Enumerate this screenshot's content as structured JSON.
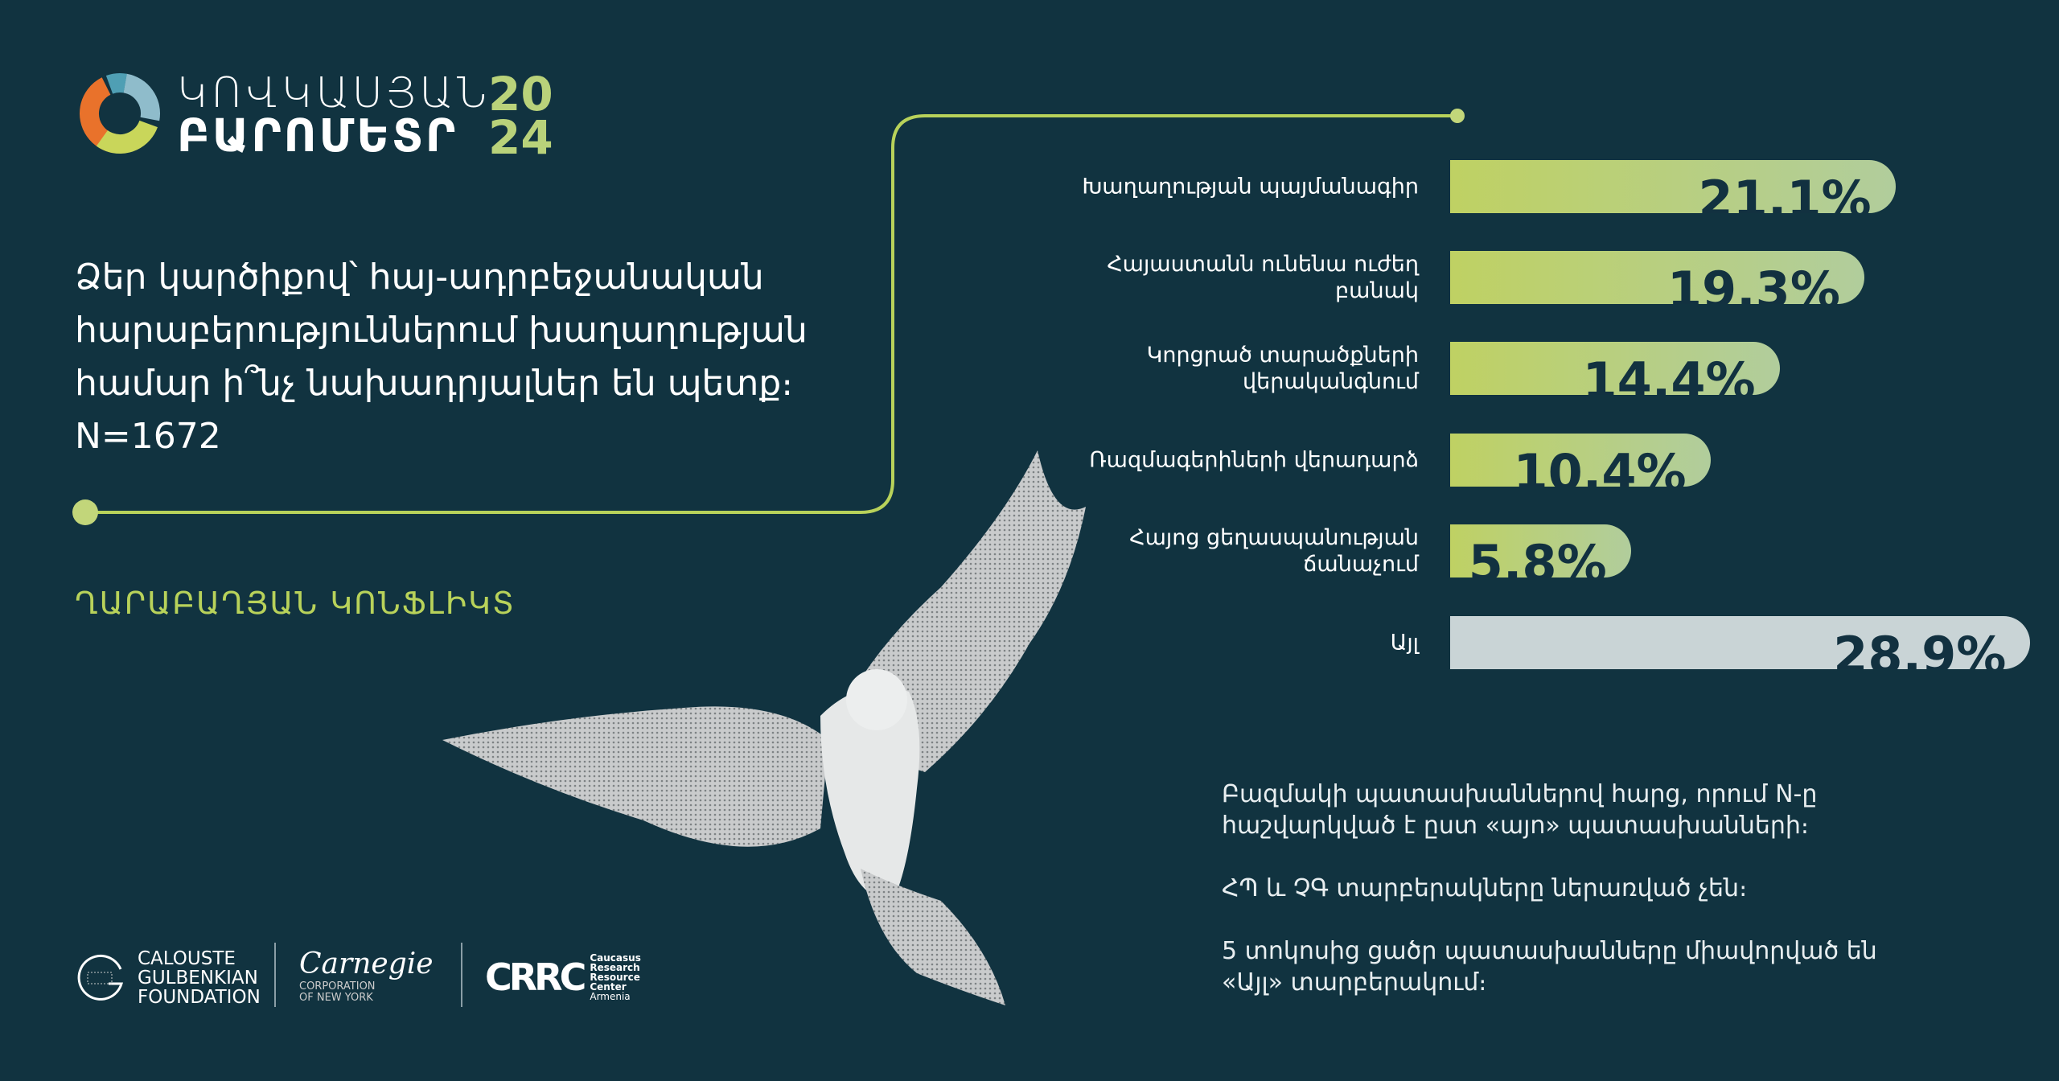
{
  "brand": {
    "line1": "ԿՈՎԿԱՍՅԱՆ",
    "line2": "ԲԱՐՈՄԵՏՐ",
    "year1": "20",
    "year2": "24"
  },
  "question": "Ձեր կարծիքով՝ հայ-ադրբեջանական հարաբերություններում խաղաղության համար ի՞նչ նախադրյալներ են պետք։ N=1672",
  "subtitle": "ՂԱՐԱԲԱՂՅԱՆ ԿՈՆՖԼԻԿՏ",
  "chart_data": {
    "type": "bar",
    "orientation": "horizontal",
    "categories": [
      "Խաղաղության պայմանագիր",
      "Հայաստանն ունենա ուժեղ բանակ",
      "Կորցրած տարածքների վերականգնում",
      "Ռազմագերիների վերադարձ",
      "Հայոց ցեղասպանության ճանաչում",
      "Այլ"
    ],
    "values": [
      21.1,
      19.3,
      14.4,
      10.4,
      5.8,
      28.9
    ],
    "labels": [
      "21.1%",
      "19.3%",
      "14.4%",
      "10.4%",
      "5.8%",
      "28.9%"
    ],
    "colors": {
      "main": "#bfd163",
      "other": "#c9d4d6"
    }
  },
  "notes": [
    "Բազմակի պատասխաններով հարց, որում N-ը հաշվարկված է ըստ «այո» պատասխանների։",
    "ՀՊ և ՉԳ տարբերակները ներառված չեն։",
    "5 տոկոսից ցածր պատասխանները միավորված են «Այլ» տարբերակում։"
  ],
  "logos": {
    "gulbenkian": [
      "CALOUSTE",
      "GULBENKIAN",
      "FOUNDATION"
    ],
    "carnegie": "Carnegie",
    "carnegie_sub": [
      "CORPORATION",
      "OF NEW YORK"
    ],
    "crrc": [
      "Caucasus",
      "Research",
      "Resource",
      "Center",
      "Armenia"
    ]
  },
  "colors": {
    "background": "#113340",
    "accent": "#b8d25a"
  }
}
